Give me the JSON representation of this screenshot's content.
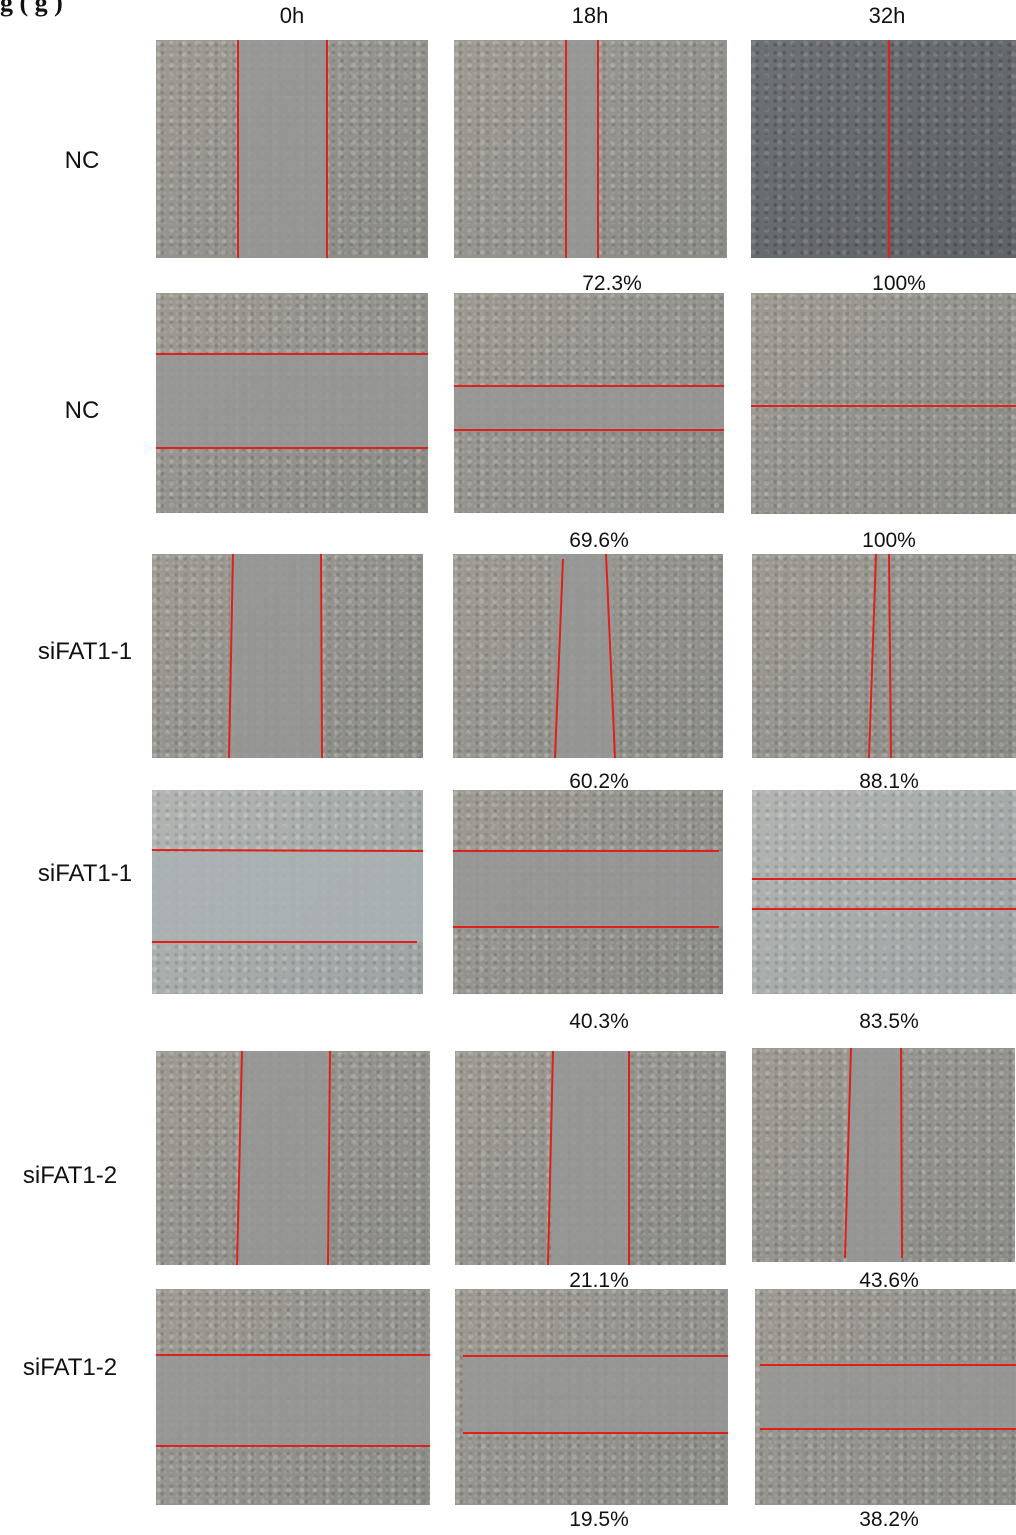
{
  "figure": {
    "title_fragment": "g         (                          g          )"
  },
  "columns": [
    "0h",
    "18h",
    "32h"
  ],
  "rows": [
    {
      "label": "NC",
      "pct_18h": "72.3%",
      "pct_32h": "100%"
    },
    {
      "label": "NC",
      "pct_18h": "69.6%",
      "pct_32h": "100%"
    },
    {
      "label": "siFAT1-1",
      "pct_18h": "60.2%",
      "pct_32h": "88.1%"
    },
    {
      "label": "siFAT1-1",
      "pct_18h": "40.3%",
      "pct_32h": "83.5%"
    },
    {
      "label": "siFAT1-2",
      "pct_18h": "21.1%",
      "pct_32h": "43.6%"
    },
    {
      "label": "siFAT1-2",
      "pct_18h": "19.5%",
      "pct_32h": "38.2%"
    }
  ],
  "colors": {
    "scratch_line": "#e0201a",
    "background": "#ffffff"
  }
}
